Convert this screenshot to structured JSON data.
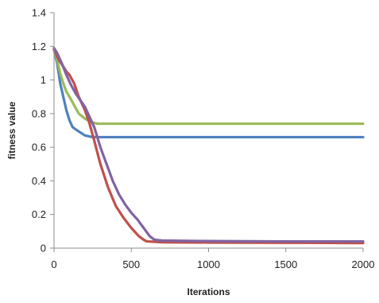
{
  "chart_data": {
    "type": "line",
    "title": "",
    "xlabel": "Iterations",
    "ylabel": "fitness value",
    "xlim": [
      0,
      2000
    ],
    "ylim": [
      0,
      1.4
    ],
    "xticks": [
      0,
      500,
      1000,
      1500,
      2000
    ],
    "yticks": [
      0,
      0.2,
      0.4,
      0.6,
      0.8,
      1,
      1.2,
      1.4
    ],
    "xtick_labels": [
      "0",
      "500",
      "1000",
      "1500",
      "2000"
    ],
    "ytick_labels": [
      "0",
      "0.2",
      "0.4",
      "0.6",
      "0.8",
      "1",
      "1.2",
      "1.4"
    ],
    "grid": false,
    "legend": "none",
    "series": [
      {
        "color": "#4F81BD",
        "x": [
          0,
          20,
          40,
          60,
          80,
          100,
          120,
          150,
          200,
          250,
          2000
        ],
        "y": [
          1.18,
          1.1,
          0.98,
          0.9,
          0.82,
          0.76,
          0.72,
          0.7,
          0.67,
          0.66,
          0.66
        ]
      },
      {
        "color": "#9BBB59",
        "x": [
          0,
          20,
          40,
          60,
          80,
          100,
          130,
          160,
          200,
          240,
          280,
          2000
        ],
        "y": [
          1.18,
          1.12,
          1.04,
          0.98,
          0.93,
          0.9,
          0.85,
          0.8,
          0.77,
          0.75,
          0.74,
          0.74
        ]
      },
      {
        "color": "#C0504D",
        "x": [
          0,
          30,
          60,
          80,
          100,
          130,
          160,
          200,
          230,
          260,
          300,
          350,
          400,
          450,
          500,
          550,
          580,
          600,
          650,
          700,
          1000,
          1500,
          2000
        ],
        "y": [
          1.18,
          1.12,
          1.08,
          1.05,
          1.03,
          0.98,
          0.9,
          0.82,
          0.74,
          0.64,
          0.5,
          0.36,
          0.25,
          0.18,
          0.12,
          0.07,
          0.05,
          0.04,
          0.038,
          0.035,
          0.033,
          0.032,
          0.03
        ]
      },
      {
        "color": "#8064A2",
        "x": [
          0,
          20,
          50,
          80,
          110,
          140,
          170,
          200,
          230,
          260,
          300,
          340,
          380,
          420,
          460,
          500,
          540,
          580,
          620,
          650,
          700,
          1000,
          1500,
          2000
        ],
        "y": [
          1.19,
          1.16,
          1.1,
          1.03,
          0.97,
          0.92,
          0.88,
          0.84,
          0.78,
          0.72,
          0.6,
          0.5,
          0.4,
          0.32,
          0.26,
          0.21,
          0.17,
          0.12,
          0.07,
          0.05,
          0.045,
          0.042,
          0.04,
          0.04
        ]
      }
    ]
  }
}
